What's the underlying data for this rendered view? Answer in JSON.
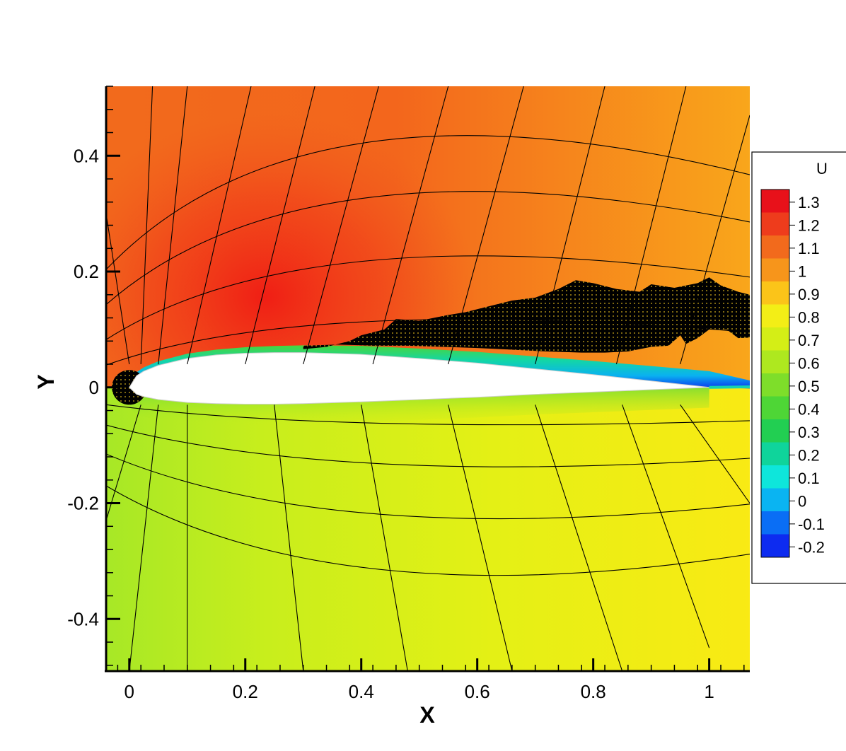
{
  "chart_data": {
    "type": "heatmap",
    "title": "",
    "xlabel": "X",
    "ylabel": "Y",
    "xlim": [
      -0.04,
      1.07
    ],
    "ylim": [
      -0.49,
      0.52
    ],
    "x_ticks": [
      0,
      0.2,
      0.4,
      0.6,
      0.8,
      1
    ],
    "x_tick_labels": [
      "0",
      "0.2",
      "0.4",
      "0.6",
      "0.8",
      "1"
    ],
    "y_ticks": [
      -0.4,
      -0.2,
      0,
      0.2,
      0.4
    ],
    "y_tick_labels": [
      "-0.4",
      "-0.2",
      "0",
      "0.2",
      "0.4"
    ],
    "grid": false,
    "legend_placement": "right",
    "colorbar": {
      "variable": "U",
      "levels": [
        1.3,
        1.2,
        1.1,
        1,
        0.9,
        0.8,
        0.7,
        0.6,
        0.5,
        0.4,
        0.3,
        0.2,
        0.1,
        0,
        -0.1,
        -0.2
      ],
      "level_labels": [
        "1.3",
        "1.2",
        "1.1",
        "1",
        "0.9",
        "0.8",
        "0.7",
        "0.6",
        "0.5",
        "0.4",
        "0.3",
        "0.2",
        "0.1",
        "0",
        "-0.1",
        "-0.2"
      ],
      "colors": [
        "#e8111a",
        "#ee3c1c",
        "#f26a1c",
        "#f7951b",
        "#fbc419",
        "#f3ee16",
        "#d4ee16",
        "#aee81f",
        "#7ede2a",
        "#4ed636",
        "#22cf52",
        "#0fd49b",
        "#0ee6db",
        "#0ab4f2",
        "#0a6ef5",
        "#0d2bf0"
      ]
    },
    "field": {
      "description": "velocity U around airfoil",
      "upper_max": 1.32,
      "upper_far": 1.05,
      "lower_value": 0.85,
      "wall_value": -0.15
    },
    "airfoil": {
      "x": [
        0,
        0.0125,
        0.025,
        0.05,
        0.1,
        0.15,
        0.2,
        0.25,
        0.3,
        0.4,
        0.5,
        0.6,
        0.7,
        0.8,
        0.9,
        1.0
      ],
      "y_upper": [
        0,
        0.02,
        0.028,
        0.038,
        0.05,
        0.056,
        0.059,
        0.06,
        0.06,
        0.057,
        0.05,
        0.042,
        0.032,
        0.022,
        0.011,
        0
      ],
      "y_lower": [
        0,
        -0.012,
        -0.016,
        -0.021,
        -0.026,
        -0.028,
        -0.029,
        -0.029,
        -0.028,
        -0.025,
        -0.021,
        -0.017,
        -0.012,
        -0.008,
        -0.004,
        0
      ]
    }
  }
}
